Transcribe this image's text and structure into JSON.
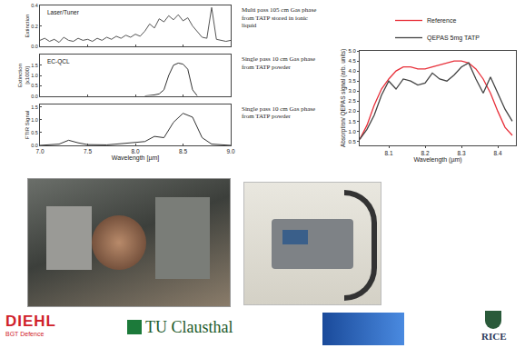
{
  "chart_data": [
    {
      "type": "line",
      "x_title": "Wavelength [µm]",
      "xlim": [
        7.0,
        9.0
      ],
      "xticks": [
        {
          "value": 7.0,
          "label": "7.0"
        },
        7.5,
        {
          "value": 8.0,
          "label": "8.0"
        },
        8.5,
        {
          "value": 9.0,
          "label": "9.0"
        }
      ],
      "panels": [
        {
          "label": "Laser/Tuner",
          "y_title": "Extinction",
          "ylim": [
            0,
            0.4
          ],
          "yticks": [
            {
              "value": 0,
              "label": "0.0"
            },
            0.2,
            0.4
          ],
          "note": "Multi pass 105 cm Gas phase from TATP stored in ionic liquid",
          "series": [
            {
              "color": "#555555",
              "x": [
                7.0,
                7.05,
                7.1,
                7.15,
                7.2,
                7.25,
                7.3,
                7.35,
                7.4,
                7.45,
                7.5,
                7.55,
                7.6,
                7.65,
                7.7,
                7.75,
                7.8,
                7.85,
                7.9,
                7.95,
                8.0,
                8.05,
                8.1,
                8.15,
                8.2,
                8.25,
                8.3,
                8.35,
                8.4,
                8.45,
                8.5,
                8.55,
                8.6,
                8.65,
                8.7,
                8.75,
                8.8,
                8.85,
                8.9,
                8.95,
                9.0
              ],
              "values": [
                0.06,
                0.08,
                0.05,
                0.07,
                0.04,
                0.09,
                0.06,
                0.05,
                0.08,
                0.06,
                0.07,
                0.05,
                0.08,
                0.06,
                0.09,
                0.07,
                0.1,
                0.08,
                0.11,
                0.09,
                0.12,
                0.1,
                0.15,
                0.22,
                0.18,
                0.27,
                0.24,
                0.3,
                0.26,
                0.31,
                0.25,
                0.28,
                0.2,
                0.14,
                0.09,
                0.08,
                0.38,
                0.07,
                0.06,
                0.05,
                0.06
              ]
            }
          ]
        },
        {
          "label": "EC-QCL",
          "y_title": "Extinction [x1000]",
          "ylim": [
            0,
            2.0
          ],
          "yticks": [
            {
              "value": 0,
              "label": "0.0"
            },
            0.5,
            {
              "value": 1.0,
              "label": "1.0"
            },
            1.5
          ],
          "note": "Single pass 10 cm Gas phase from TATP powder",
          "series": [
            {
              "color": "#333333",
              "x": [
                8.1,
                8.15,
                8.2,
                8.25,
                8.3,
                8.35,
                8.4,
                8.45,
                8.5,
                8.55,
                8.6,
                8.65
              ],
              "values": [
                0.0,
                0.02,
                0.05,
                0.1,
                0.3,
                1.0,
                1.5,
                1.6,
                1.55,
                1.3,
                0.3,
                0.0
              ]
            }
          ]
        },
        {
          "y_title": "FTIR Signal",
          "ylim": [
            0,
            1.6
          ],
          "yticks": [
            {
              "value": 0,
              "label": "0.0"
            },
            0.5,
            {
              "value": 1.0,
              "label": "1.0"
            },
            1.5
          ],
          "note": "Single pass 10 cm Gas phase from TATP powder",
          "series": [
            {
              "color": "#333333",
              "x": [
                7.0,
                7.1,
                7.2,
                7.3,
                7.4,
                7.5,
                7.6,
                7.7,
                7.8,
                7.9,
                8.0,
                8.1,
                8.2,
                8.3,
                8.4,
                8.5,
                8.6,
                8.7,
                8.8,
                8.9,
                9.0
              ],
              "values": [
                0.0,
                0.02,
                0.05,
                0.2,
                0.1,
                0.03,
                0.02,
                0.02,
                0.05,
                0.08,
                0.1,
                0.15,
                0.35,
                0.3,
                0.9,
                1.25,
                1.1,
                0.3,
                0.05,
                0.02,
                0.0
              ]
            }
          ]
        }
      ]
    },
    {
      "type": "line",
      "x_title": "Wavelength (µm)",
      "y_title": "Absorption/ QEPAS signal (arb. units)",
      "xlim": [
        8.02,
        8.45
      ],
      "xticks": [
        8.1,
        8.2,
        8.3,
        8.4
      ],
      "ylim": [
        0.3,
        5.0
      ],
      "yticks": [
        0.5,
        {
          "value": 1.0,
          "label": "1.0"
        },
        1.5,
        {
          "value": 2.0,
          "label": "2.0"
        },
        2.5,
        {
          "value": 3.0,
          "label": "3.0"
        },
        3.5,
        {
          "value": 4.0,
          "label": "4.0"
        },
        4.5,
        {
          "value": 5.0,
          "label": "5.0"
        }
      ],
      "legend": "top",
      "series": [
        {
          "name": "Reference",
          "color": "#e8303a",
          "x": [
            8.02,
            8.04,
            8.06,
            8.08,
            8.1,
            8.12,
            8.14,
            8.16,
            8.18,
            8.2,
            8.22,
            8.24,
            8.26,
            8.28,
            8.3,
            8.32,
            8.34,
            8.36,
            8.38,
            8.4,
            8.42,
            8.44
          ],
          "values": [
            0.6,
            1.3,
            2.3,
            3.1,
            3.6,
            4.0,
            4.2,
            4.2,
            4.1,
            4.1,
            4.2,
            4.3,
            4.4,
            4.5,
            4.5,
            4.4,
            4.1,
            3.6,
            2.9,
            2.0,
            1.2,
            0.8
          ]
        },
        {
          "name": "QEPAS 5mg TATP",
          "color": "#444444",
          "x": [
            8.02,
            8.04,
            8.06,
            8.08,
            8.1,
            8.12,
            8.14,
            8.16,
            8.18,
            8.2,
            8.22,
            8.24,
            8.26,
            8.28,
            8.3,
            8.32,
            8.34,
            8.36,
            8.38,
            8.4,
            8.42,
            8.44
          ],
          "values": [
            0.6,
            1.1,
            1.8,
            2.8,
            3.5,
            3.1,
            3.6,
            3.5,
            3.3,
            3.4,
            3.9,
            3.6,
            3.5,
            3.8,
            4.2,
            4.4,
            3.6,
            2.9,
            3.7,
            2.9,
            2.1,
            1.5
          ]
        }
      ]
    }
  ],
  "logos": {
    "diehl": "DIEHL",
    "diehl_sub": "BGT Defence",
    "tu": "TU Clausthal",
    "rice": "RICE"
  }
}
